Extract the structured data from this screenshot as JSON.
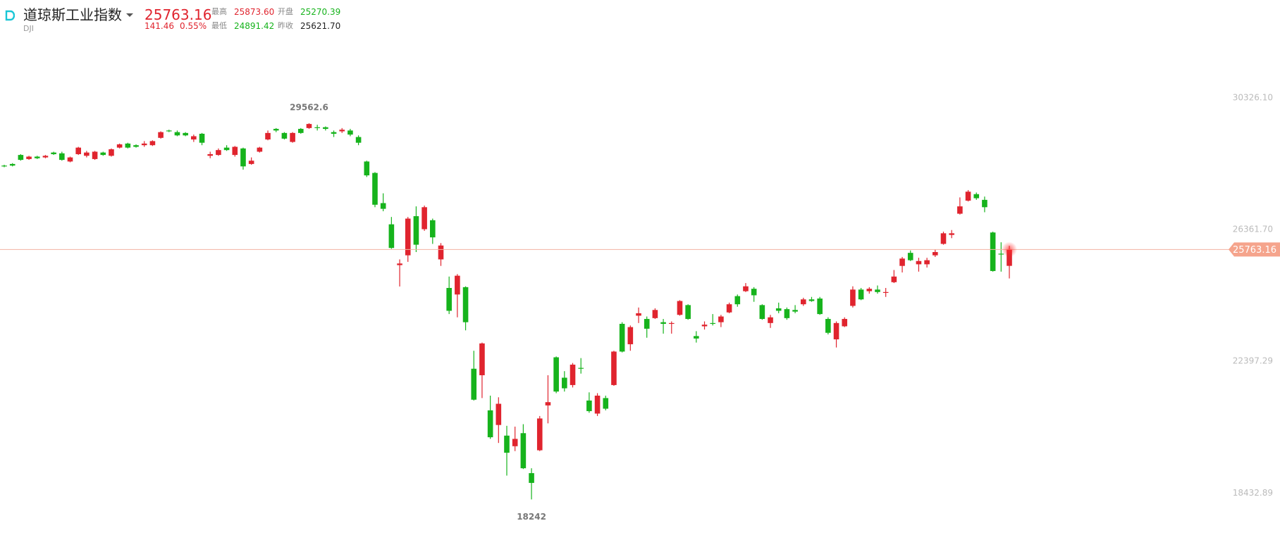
{
  "header": {
    "name": "道琼斯工业指数",
    "code": "DJI",
    "price": "25763.16",
    "change": "141.46",
    "change_pct": "0.55%",
    "high_label": "最高",
    "high": "25873.60",
    "open_label": "开盘",
    "open": "25270.39",
    "low_label": "最低",
    "low": "24891.42",
    "prev_close_label": "昨收",
    "prev_close": "25621.70"
  },
  "chart_data": {
    "type": "candlestick",
    "up_color": "#e0242e",
    "down_color": "#16b31c",
    "price_line_color": "#f3b3a2",
    "grid": false,
    "open": [
      28288,
      28337,
      28608,
      28485,
      28558,
      28534,
      28681,
      28657,
      28411,
      28632,
      28583,
      28485,
      28681,
      28583,
      28829,
      28951,
      28902,
      28902,
      28902,
      29123,
      29344,
      29295,
      29270,
      29074,
      29246,
      28583,
      28608,
      28829,
      28608,
      28804,
      28337,
      28706,
      29074,
      29393,
      29270,
      29000,
      29393,
      29418,
      29442,
      29442,
      29295,
      29319,
      29344,
      29148,
      28411,
      28067,
      27159,
      26521,
      25293,
      25588,
      26766,
      26374,
      26644,
      25465,
      24606,
      24409,
      24630,
      22175,
      21979,
      20923,
      20482,
      20162,
      19843,
      20236,
      19033,
      19721,
      21071,
      22519,
      21905,
      21684,
      22200,
      21218,
      20825,
      21292,
      21684,
      23526,
      22912,
      23771,
      23673,
      23698,
      23575,
      23526,
      23796,
      24090,
      23158,
      23452,
      23550,
      23575,
      23870,
      24360,
      24508,
      24581,
      24090,
      23550,
      23993,
      23968,
      23943,
      24115,
      24262,
      24287,
      23673,
      23059,
      23452,
      24066,
      24557,
      24508,
      24557,
      24459,
      24779,
      25269,
      25662,
      25318,
      25318,
      25588,
      25932,
      26202,
      26840,
      27233,
      27429,
      27257,
      26275,
      25637,
      25270.39
    ],
    "high": [
      28313,
      28362,
      28632,
      28583,
      28583,
      28608,
      28706,
      28706,
      28558,
      28853,
      28730,
      28730,
      28706,
      28804,
      28951,
      28976,
      28927,
      29025,
      29049,
      29319,
      29368,
      29344,
      29295,
      29221,
      29270,
      28706,
      28804,
      28902,
      28878,
      28829,
      28534,
      28853,
      29344,
      29418,
      29295,
      29295,
      29418,
      29562.6,
      29516,
      29467,
      29344,
      29418,
      29393,
      29197,
      28436,
      28092,
      27454,
      26742,
      25465,
      26742,
      27061,
      27085,
      26693,
      25956,
      24949,
      25023,
      24655,
      22716,
      22962,
      21365,
      21316,
      20457,
      20433,
      20506,
      19180,
      20752,
      21979,
      22544,
      22102,
      22347,
      22495,
      21464,
      21439,
      21365,
      22716,
      23575,
      23477,
      24017,
      23747,
      23993,
      23673,
      23599,
      24238,
      24115,
      23305,
      23599,
      23820,
      23796,
      24164,
      24409,
      24753,
      24630,
      24115,
      23796,
      24164,
      24017,
      24090,
      24311,
      24336,
      24336,
      23722,
      23599,
      23722,
      24655,
      24606,
      24630,
      24680,
      24606,
      25146,
      25539,
      25735,
      25514,
      25514,
      25760,
      26300,
      26349,
      27331,
      27552,
      27478,
      27356,
      26300,
      25980,
      25873.6
    ],
    "low": [
      28239,
      28264,
      28436,
      28460,
      28485,
      28509,
      28608,
      28436,
      28387,
      28608,
      28534,
      28460,
      28583,
      28558,
      28804,
      28804,
      28829,
      28853,
      28878,
      29099,
      29295,
      29172,
      29172,
      29000,
      28902,
      28509,
      28583,
      28730,
      28558,
      28166,
      28313,
      28681,
      29049,
      29295,
      29074,
      28976,
      29246,
      29393,
      29344,
      29344,
      29148,
      29270,
      29172,
      28902,
      27945,
      27036,
      26914,
      25784,
      24650,
      25391,
      25686,
      26324,
      25932,
      25269,
      23820,
      23722,
      23330,
      21218,
      21292,
      20064,
      19941,
      18959,
      19696,
      19156,
      18242,
      19696,
      20531,
      21439,
      21488,
      21611,
      22028,
      20849,
      20752,
      20923,
      21660,
      22666,
      22716,
      23550,
      23108,
      23673,
      23231,
      23231,
      23771,
      23648,
      22962,
      23354,
      23477,
      23428,
      23845,
      24041,
      24483,
      24189,
      23648,
      23403,
      23845,
      23648,
      23845,
      24066,
      24189,
      23796,
      23207,
      22814,
      23428,
      24017,
      24238,
      24434,
      24434,
      24336,
      24753,
      25072,
      25416,
      25097,
      25220,
      25539,
      25907,
      26104,
      26815,
      27208,
      27257,
      26884,
      25097,
      25097,
      24891.42
    ],
    "close": [
      28264,
      28288,
      28460,
      28558,
      28509,
      28583,
      28632,
      28460,
      28534,
      28829,
      28681,
      28706,
      28608,
      28779,
      28927,
      28829,
      28853,
      28951,
      29025,
      29295,
      29319,
      29197,
      29197,
      29172,
      28976,
      28632,
      28755,
      28755,
      28853,
      28264,
      28436,
      28829,
      29270,
      29344,
      29099,
      29270,
      29270,
      29540,
      29418,
      29393,
      29246,
      29368,
      29221,
      28976,
      27994,
      27110,
      26987,
      25809,
      25342,
      26693,
      25907,
      27036,
      26128,
      25883,
      23918,
      24974,
      23575,
      21243,
      22937,
      20113,
      21120,
      19647,
      20064,
      19180,
      18739,
      20678,
      21169,
      21488,
      21586,
      22298,
      22175,
      20899,
      21365,
      20972,
      22691,
      22691,
      23428,
      23845,
      23379,
      23943,
      23526,
      23550,
      24213,
      23673,
      23084,
      23501,
      23526,
      23747,
      24115,
      24115,
      24655,
      24385,
      23673,
      23722,
      23918,
      23698,
      23894,
      24262,
      24213,
      23820,
      23256,
      23550,
      23673,
      24557,
      24262,
      24581,
      24483,
      24483,
      24949,
      25490,
      25441,
      25416,
      25441,
      25686,
      26251,
      26251,
      27061,
      27503,
      27306,
      27036,
      25116,
      25612,
      25763.16
    ],
    "ylim": [
      17000,
      32000
    ],
    "yticks": [
      {
        "value": 30326.1,
        "label": "30326.10"
      },
      {
        "value": 26361.7,
        "label": "26361.70"
      },
      22397.29,
      18432.89
    ]
  }
}
